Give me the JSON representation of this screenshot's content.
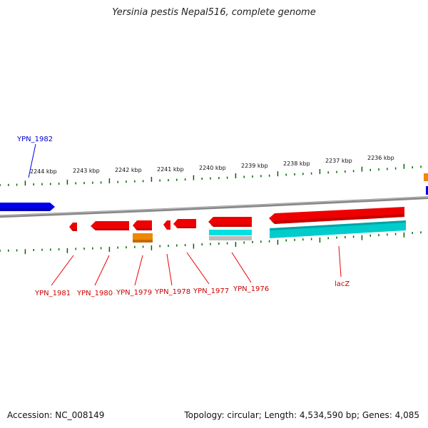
{
  "title": "Yersinia pestis Nepal516, complete genome",
  "accession": "Accession: NC_008149",
  "summary": "Topology: circular; Length: 4,534,590 bp; Genes: 4,085",
  "colors": {
    "forward_gene": "#0000ee",
    "reverse_gene": "#ee0000",
    "rna": "#ee8800",
    "cds": "#00cccc",
    "misc": "#bbbbbb",
    "backbone": "#888888",
    "tick": "#006600"
  },
  "ticks": [
    "2244 kbp",
    "2243 kbp",
    "2242 kbp",
    "2241 kbp",
    "2240 kbp",
    "2239 kbp",
    "2238 kbp",
    "2237 kbp",
    "2236 kbp"
  ],
  "genes": [
    {
      "label": "YPN_1982",
      "strand": "forward"
    },
    {
      "label": "YPN_1981",
      "strand": "reverse"
    },
    {
      "label": "YPN_1980",
      "strand": "reverse"
    },
    {
      "label": "YPN_1979",
      "strand": "reverse"
    },
    {
      "label": "YPN_1978",
      "strand": "reverse"
    },
    {
      "label": "YPN_1977",
      "strand": "reverse"
    },
    {
      "label": "YPN_1976",
      "strand": "reverse"
    },
    {
      "label": "lacZ",
      "strand": "reverse"
    }
  ]
}
